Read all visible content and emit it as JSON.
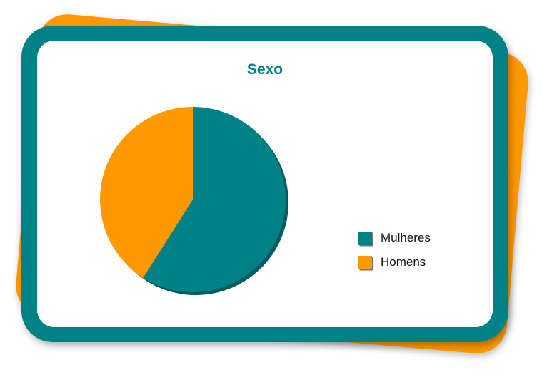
{
  "colors": {
    "teal": "#008185",
    "teal_shadow": "#005c5f",
    "orange": "#ff9900",
    "orange_shadow": "#b36b00"
  },
  "chart_data": {
    "type": "pie",
    "title": "Sexo",
    "series": [
      {
        "name": "Mulheres",
        "value": 59
      },
      {
        "name": "Homens",
        "value": 41
      }
    ],
    "legend_position": "right"
  }
}
